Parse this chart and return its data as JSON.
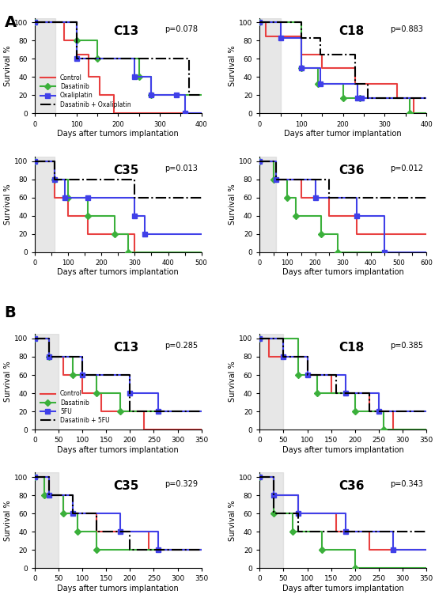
{
  "panels": {
    "A_C13": {
      "title": "C13",
      "pval": "p=0.078",
      "xlabel": "Days after tumors implantation",
      "xlim": [
        0,
        400
      ],
      "xticks": [
        0,
        50,
        100,
        150,
        200,
        250,
        300,
        350,
        400
      ],
      "shade_end": 50,
      "curves": {
        "Control": {
          "color": "#e84040",
          "style": "-",
          "marker": null,
          "x": [
            0,
            70,
            70,
            100,
            100,
            130,
            130,
            155,
            155,
            190,
            190,
            220,
            220,
            400
          ],
          "y": [
            100,
            100,
            80,
            80,
            65,
            65,
            40,
            40,
            20,
            20,
            0,
            0,
            0,
            0
          ]
        },
        "Dasatinib": {
          "color": "#3bb03b",
          "style": "-",
          "marker": "D",
          "x": [
            0,
            100,
            100,
            150,
            150,
            250,
            250,
            280,
            280,
            400
          ],
          "y": [
            100,
            100,
            80,
            80,
            60,
            60,
            40,
            40,
            20,
            20
          ]
        },
        "Oxaliplatin": {
          "color": "#4040e8",
          "style": "-",
          "marker": "s",
          "x": [
            0,
            100,
            100,
            240,
            240,
            280,
            280,
            340,
            340,
            360,
            360,
            400
          ],
          "y": [
            100,
            100,
            60,
            60,
            40,
            40,
            20,
            20,
            20,
            20,
            0,
            0
          ]
        },
        "Dasatinib + Oxaliplatin": {
          "color": "#000000",
          "style": "-.",
          "marker": null,
          "x": [
            0,
            100,
            100,
            250,
            250,
            370,
            370,
            400
          ],
          "y": [
            100,
            100,
            60,
            60,
            60,
            60,
            20,
            20
          ]
        }
      }
    },
    "A_C18": {
      "title": "C18",
      "pval": "p=0.883",
      "xlabel": "Days after tumor implantation",
      "xlim": [
        0,
        400
      ],
      "xticks": [
        0,
        50,
        100,
        150,
        200,
        250,
        300,
        350,
        400
      ],
      "shade_end": 50,
      "curves": {
        "Control": {
          "color": "#e84040",
          "style": "-",
          "marker": null,
          "x": [
            0,
            15,
            15,
            100,
            100,
            150,
            150,
            230,
            230,
            330,
            330,
            370,
            370,
            400
          ],
          "y": [
            100,
            100,
            85,
            85,
            65,
            65,
            50,
            50,
            33,
            33,
            17,
            17,
            0,
            0
          ]
        },
        "Dasatinib": {
          "color": "#3bb03b",
          "style": "-",
          "marker": "D",
          "x": [
            0,
            100,
            100,
            140,
            140,
            200,
            200,
            240,
            240,
            360,
            360,
            400
          ],
          "y": [
            100,
            100,
            50,
            50,
            33,
            33,
            17,
            17,
            17,
            17,
            0,
            0
          ]
        },
        "Oxaliplatin": {
          "color": "#4040e8",
          "style": "-",
          "marker": "s",
          "x": [
            0,
            50,
            50,
            100,
            100,
            145,
            145,
            235,
            235,
            245,
            245,
            400
          ],
          "y": [
            100,
            100,
            83,
            83,
            50,
            50,
            33,
            33,
            17,
            17,
            17,
            17
          ]
        },
        "Dasatinib + Oxaliplatin": {
          "color": "#000000",
          "style": "-.",
          "marker": null,
          "x": [
            0,
            100,
            100,
            145,
            145,
            230,
            230,
            260,
            260,
            360,
            360,
            400
          ],
          "y": [
            100,
            100,
            83,
            83,
            65,
            65,
            33,
            33,
            17,
            17,
            17,
            17
          ]
        }
      }
    },
    "A_C35": {
      "title": "C35",
      "pval": "p=0.013",
      "xlabel": "Days after tumors implantation",
      "xlim": [
        0,
        500
      ],
      "xticks": [
        0,
        50,
        100,
        150,
        200,
        250,
        300,
        350,
        400,
        450,
        500
      ],
      "shade_end": 60,
      "curves": {
        "Control": {
          "color": "#e84040",
          "style": "-",
          "marker": null,
          "x": [
            0,
            60,
            60,
            100,
            100,
            160,
            160,
            300,
            300,
            500
          ],
          "y": [
            100,
            100,
            60,
            60,
            40,
            40,
            20,
            20,
            0,
            0
          ]
        },
        "Dasatinib": {
          "color": "#3bb03b",
          "style": "-",
          "marker": "D",
          "x": [
            0,
            60,
            60,
            100,
            100,
            160,
            160,
            240,
            240,
            280,
            280,
            500
          ],
          "y": [
            100,
            100,
            80,
            80,
            60,
            60,
            40,
            40,
            20,
            20,
            0,
            0
          ]
        },
        "Oxaliplatin": {
          "color": "#4040e8",
          "style": "-",
          "marker": "s",
          "x": [
            0,
            60,
            60,
            90,
            90,
            160,
            160,
            300,
            300,
            330,
            330,
            500
          ],
          "y": [
            100,
            100,
            80,
            80,
            60,
            60,
            60,
            60,
            40,
            40,
            20,
            20
          ]
        },
        "Dasatinib + Oxaliplatin": {
          "color": "#000000",
          "style": "-.",
          "marker": null,
          "x": [
            0,
            60,
            60,
            300,
            300,
            360,
            360,
            400,
            400,
            500
          ],
          "y": [
            100,
            100,
            80,
            80,
            60,
            60,
            60,
            60,
            60,
            60
          ]
        }
      }
    },
    "A_C36": {
      "title": "C36",
      "pval": "p=0.012",
      "xlabel": "Days after tumors implantation",
      "xlim": [
        0,
        600
      ],
      "xticks": [
        0,
        50,
        100,
        150,
        200,
        250,
        300,
        350,
        400,
        450,
        500,
        550,
        600
      ],
      "shade_end": 60,
      "curves": {
        "Control": {
          "color": "#e84040",
          "style": "-",
          "marker": null,
          "x": [
            0,
            50,
            50,
            150,
            150,
            250,
            250,
            350,
            350,
            600
          ],
          "y": [
            100,
            100,
            80,
            80,
            60,
            60,
            40,
            40,
            20,
            20
          ]
        },
        "Dasatinib": {
          "color": "#3bb03b",
          "style": "-",
          "marker": "D",
          "x": [
            0,
            50,
            50,
            100,
            100,
            130,
            130,
            220,
            220,
            280,
            280,
            600
          ],
          "y": [
            100,
            100,
            80,
            80,
            60,
            60,
            40,
            40,
            20,
            20,
            0,
            0
          ]
        },
        "Oxaliplatin": {
          "color": "#4040e8",
          "style": "-",
          "marker": "s",
          "x": [
            0,
            60,
            60,
            200,
            200,
            350,
            350,
            450,
            450,
            600
          ],
          "y": [
            100,
            100,
            80,
            80,
            60,
            60,
            40,
            40,
            0,
            0
          ]
        },
        "Dasatinib + Oxaliplatin": {
          "color": "#000000",
          "style": "-.",
          "marker": null,
          "x": [
            0,
            60,
            60,
            250,
            250,
            420,
            420,
            600
          ],
          "y": [
            100,
            100,
            80,
            80,
            60,
            60,
            60,
            60
          ]
        }
      }
    },
    "B_C13": {
      "title": "C13",
      "pval": "p=0.285",
      "xlabel": "Days after tumors implantation",
      "xlim": [
        0,
        350
      ],
      "xticks": [
        0,
        50,
        100,
        150,
        200,
        250,
        300,
        350
      ],
      "shade_end": 50,
      "curves": {
        "Control": {
          "color": "#e84040",
          "style": "-",
          "marker": null,
          "x": [
            0,
            30,
            30,
            60,
            60,
            100,
            100,
            140,
            140,
            230,
            230,
            350
          ],
          "y": [
            100,
            100,
            80,
            80,
            60,
            60,
            40,
            40,
            20,
            20,
            0,
            0
          ]
        },
        "Dasatinib": {
          "color": "#3bb03b",
          "style": "-",
          "marker": "D",
          "x": [
            0,
            30,
            30,
            80,
            80,
            130,
            130,
            180,
            180,
            350
          ],
          "y": [
            100,
            100,
            80,
            80,
            60,
            60,
            40,
            40,
            20,
            20
          ]
        },
        "5FU": {
          "color": "#4040e8",
          "style": "-",
          "marker": "s",
          "x": [
            0,
            30,
            30,
            100,
            100,
            200,
            200,
            260,
            260,
            350
          ],
          "y": [
            100,
            100,
            80,
            80,
            60,
            60,
            40,
            40,
            20,
            20
          ]
        },
        "Dasatinib + 5FU": {
          "color": "#000000",
          "style": "-.",
          "marker": null,
          "x": [
            0,
            30,
            30,
            100,
            100,
            200,
            200,
            260,
            260,
            350
          ],
          "y": [
            100,
            100,
            80,
            80,
            60,
            60,
            20,
            20,
            20,
            20
          ]
        }
      }
    },
    "B_C18": {
      "title": "C18",
      "pval": "p=0.385",
      "xlabel": "Days after tumors implantation",
      "xlim": [
        0,
        350
      ],
      "xticks": [
        0,
        50,
        100,
        150,
        200,
        250,
        300,
        350
      ],
      "shade_end": 50,
      "curves": {
        "Control": {
          "color": "#e84040",
          "style": "-",
          "marker": null,
          "x": [
            0,
            20,
            20,
            100,
            100,
            150,
            150,
            230,
            230,
            280,
            280,
            350
          ],
          "y": [
            100,
            100,
            80,
            80,
            60,
            60,
            40,
            40,
            20,
            20,
            0,
            0
          ]
        },
        "Dasatinib": {
          "color": "#3bb03b",
          "style": "-",
          "marker": "D",
          "x": [
            0,
            80,
            80,
            120,
            120,
            200,
            200,
            260,
            260,
            350
          ],
          "y": [
            100,
            100,
            60,
            60,
            40,
            40,
            20,
            20,
            0,
            0
          ]
        },
        "5FU": {
          "color": "#4040e8",
          "style": "-",
          "marker": "s",
          "x": [
            0,
            50,
            50,
            100,
            100,
            180,
            180,
            250,
            250,
            350
          ],
          "y": [
            100,
            100,
            80,
            80,
            60,
            60,
            40,
            40,
            20,
            20
          ]
        },
        "Dasatinib + 5FU": {
          "color": "#000000",
          "style": "-.",
          "marker": null,
          "x": [
            0,
            50,
            50,
            100,
            100,
            160,
            160,
            230,
            230,
            260,
            260,
            350
          ],
          "y": [
            100,
            100,
            80,
            80,
            60,
            60,
            40,
            40,
            20,
            20,
            20,
            20
          ]
        }
      }
    },
    "B_C35": {
      "title": "C35",
      "pval": "p=0.329",
      "xlabel": "Days after tumors implantation",
      "xlim": [
        0,
        350
      ],
      "xticks": [
        0,
        50,
        100,
        150,
        200,
        250,
        300,
        350
      ],
      "shade_end": 50,
      "curves": {
        "Control": {
          "color": "#e84040",
          "style": "-",
          "marker": null,
          "x": [
            0,
            30,
            30,
            60,
            60,
            130,
            130,
            240,
            240,
            350
          ],
          "y": [
            100,
            100,
            80,
            80,
            60,
            60,
            40,
            40,
            20,
            20
          ]
        },
        "Dasatinib": {
          "color": "#3bb03b",
          "style": "-",
          "marker": "D",
          "x": [
            0,
            20,
            20,
            60,
            60,
            90,
            90,
            130,
            130,
            350
          ],
          "y": [
            100,
            100,
            80,
            80,
            60,
            60,
            40,
            40,
            20,
            20
          ]
        },
        "5FU": {
          "color": "#4040e8",
          "style": "-",
          "marker": "s",
          "x": [
            0,
            30,
            30,
            80,
            80,
            180,
            180,
            260,
            260,
            350
          ],
          "y": [
            100,
            100,
            80,
            80,
            60,
            60,
            40,
            40,
            20,
            20
          ]
        },
        "Dasatinib + 5FU": {
          "color": "#000000",
          "style": "-.",
          "marker": null,
          "x": [
            0,
            30,
            30,
            80,
            80,
            130,
            130,
            200,
            200,
            350
          ],
          "y": [
            100,
            100,
            80,
            80,
            60,
            60,
            40,
            40,
            20,
            20
          ]
        }
      }
    },
    "B_C36": {
      "title": "C36",
      "pval": "p=0.343",
      "xlabel": "Days after tumors implantation",
      "xlim": [
        0,
        350
      ],
      "xticks": [
        0,
        50,
        100,
        150,
        200,
        250,
        300,
        350
      ],
      "shade_end": 50,
      "curves": {
        "Control": {
          "color": "#e84040",
          "style": "-",
          "marker": null,
          "x": [
            0,
            30,
            30,
            80,
            80,
            160,
            160,
            230,
            230,
            350
          ],
          "y": [
            100,
            100,
            80,
            80,
            60,
            60,
            40,
            40,
            20,
            20
          ]
        },
        "Dasatinib": {
          "color": "#3bb03b",
          "style": "-",
          "marker": "D",
          "x": [
            0,
            30,
            30,
            70,
            70,
            130,
            130,
            200,
            200,
            350
          ],
          "y": [
            100,
            100,
            60,
            60,
            40,
            40,
            20,
            20,
            0,
            0
          ]
        },
        "5FU": {
          "color": "#4040e8",
          "style": "-",
          "marker": "s",
          "x": [
            0,
            30,
            30,
            80,
            80,
            180,
            180,
            280,
            280,
            350
          ],
          "y": [
            100,
            100,
            80,
            80,
            60,
            60,
            40,
            40,
            20,
            20
          ]
        },
        "Dasatinib + 5FU": {
          "color": "#000000",
          "style": "-.",
          "marker": null,
          "x": [
            0,
            30,
            30,
            80,
            80,
            150,
            150,
            230,
            230,
            350
          ],
          "y": [
            100,
            100,
            60,
            60,
            40,
            40,
            40,
            40,
            40,
            40
          ]
        }
      }
    }
  },
  "legend_A": [
    "Control",
    "Dasatinib",
    "Oxaliplatin",
    "Dasatinib + Oxaliplatin"
  ],
  "legend_B": [
    "Control",
    "Dasatinib",
    "5FU",
    "Dasatinib + 5FU"
  ],
  "shade_color": "#d0d0d0",
  "ylabel": "Survival %",
  "yticks": [
    0,
    20,
    40,
    60,
    80,
    100
  ],
  "bg_color": "#ffffff"
}
